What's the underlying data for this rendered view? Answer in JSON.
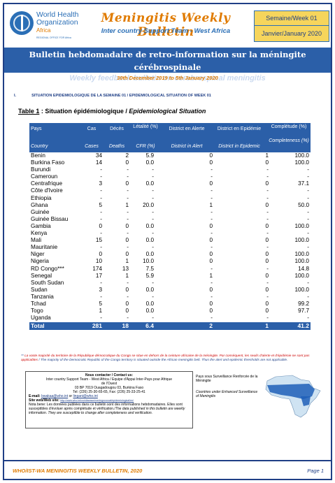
{
  "header": {
    "who_name_line1": "World Health",
    "who_name_line2": "Organization",
    "who_region": "Africa",
    "who_tagline": "REGIONAL OFFICE FOR Africa",
    "title": "Meningitis Weekly Bulletin",
    "subtitle": "Inter country Support Team - West Africa",
    "week_label": "Semaine/Week 01",
    "month_label": "Janvier/January 2020"
  },
  "banner": {
    "title_fr": "Bulletin hebdomadaire de retro-information sur la méningite cérébrospinale",
    "title_en": "Weekly feedback bulletin on cerebrospinal meningitis"
  },
  "date_range": "30th December 2019 to 5th January 2020",
  "section": {
    "number": "I.",
    "title": "SITUATION EPIDEMIOLOGIQUE DE LA SEMAINE 01 / EPIDEMIOLOGICAL SITUATION OF WEEK 01"
  },
  "table_title": {
    "label": "Table 1",
    "fr": "Situation épidémiologique",
    "en": "Epidemiological Situation"
  },
  "table": {
    "headers_fr": [
      "Pays",
      "Cas",
      "Décès",
      "Létalité (%)",
      "District en Alerte",
      "District en Epidémie",
      "Complétude (%)"
    ],
    "headers_en": [
      "Country",
      "Cases",
      "Deaths",
      "CFR (%)",
      "District in Alert",
      "District in Epidemic",
      "Completeness (%)"
    ],
    "rows": [
      {
        "country": "Benin",
        "cases": "34",
        "deaths": "2",
        "cfr": "5.9",
        "alert": "0",
        "epidemic": "1",
        "completeness": "100.0"
      },
      {
        "country": "Burkina Faso",
        "cases": "14",
        "deaths": "0",
        "cfr": "0.0",
        "alert": "0",
        "epidemic": "0",
        "completeness": "100.0"
      },
      {
        "country": "Burundi",
        "cases": "-",
        "deaths": "-",
        "cfr": "-",
        "alert": "-",
        "epidemic": "-",
        "completeness": "-"
      },
      {
        "country": "Cameroun",
        "cases": "-",
        "deaths": "-",
        "cfr": "-",
        "alert": "-",
        "epidemic": "-",
        "completeness": "-"
      },
      {
        "country": "Centrafrique",
        "cases": "3",
        "deaths": "0",
        "cfr": "0.0",
        "alert": "0",
        "epidemic": "0",
        "completeness": "37.1"
      },
      {
        "country": "Côte d'Ivoire",
        "cases": "-",
        "deaths": "-",
        "cfr": "-",
        "alert": "-",
        "epidemic": "-",
        "completeness": "-"
      },
      {
        "country": "Ethiopia",
        "cases": "-",
        "deaths": "-",
        "cfr": "-",
        "alert": "-",
        "epidemic": "-",
        "completeness": "-"
      },
      {
        "country": "Ghana",
        "cases": "5",
        "deaths": "1",
        "cfr": "20.0",
        "alert": "1",
        "epidemic": "0",
        "completeness": "50.0"
      },
      {
        "country": "Guinée",
        "cases": "-",
        "deaths": "-",
        "cfr": "-",
        "alert": "-",
        "epidemic": "-",
        "completeness": "-"
      },
      {
        "country": "Guinée Bissau",
        "cases": "-",
        "deaths": "-",
        "cfr": "-",
        "alert": "-",
        "epidemic": "-",
        "completeness": "-"
      },
      {
        "country": "Gambia",
        "cases": "0",
        "deaths": "0",
        "cfr": "0.0",
        "alert": "0",
        "epidemic": "0",
        "completeness": "100.0"
      },
      {
        "country": "Kenya",
        "cases": "-",
        "deaths": "-",
        "cfr": "-",
        "alert": "-",
        "epidemic": "-",
        "completeness": "-"
      },
      {
        "country": "Mali",
        "cases": "15",
        "deaths": "0",
        "cfr": "0.0",
        "alert": "0",
        "epidemic": "0",
        "completeness": "100.0"
      },
      {
        "country": "Mauritanie",
        "cases": "-",
        "deaths": "-",
        "cfr": "-",
        "alert": "-",
        "epidemic": "-",
        "completeness": "-"
      },
      {
        "country": "Niger",
        "cases": "0",
        "deaths": "0",
        "cfr": "0.0",
        "alert": "0",
        "epidemic": "0",
        "completeness": "100.0"
      },
      {
        "country": "Nigeria",
        "cases": "10",
        "deaths": "1",
        "cfr": "10.0",
        "alert": "0",
        "epidemic": "0",
        "completeness": "100.0"
      },
      {
        "country": "RD Congo***",
        "cases": "174",
        "deaths": "13",
        "cfr": "7.5",
        "alert": "-",
        "epidemic": "-",
        "completeness": "14.8"
      },
      {
        "country": "Senegal",
        "cases": "17",
        "deaths": "1",
        "cfr": "5.9",
        "alert": "1",
        "epidemic": "0",
        "completeness": "100.0"
      },
      {
        "country": "South Sudan",
        "cases": "-",
        "deaths": "-",
        "cfr": "-",
        "alert": "-",
        "epidemic": "-",
        "completeness": "-"
      },
      {
        "country": "Sudan",
        "cases": "3",
        "deaths": "0",
        "cfr": "0.0",
        "alert": "0",
        "epidemic": "0",
        "completeness": "100.0"
      },
      {
        "country": "Tanzania",
        "cases": "-",
        "deaths": "-",
        "cfr": "-",
        "alert": "-",
        "epidemic": "-",
        "completeness": "-"
      },
      {
        "country": "Tchad",
        "cases": "5",
        "deaths": "0",
        "cfr": "0.0",
        "alert": "0",
        "epidemic": "0",
        "completeness": "99.2"
      },
      {
        "country": "Togo",
        "cases": "1",
        "deaths": "0",
        "cfr": "0.0",
        "alert": "0",
        "epidemic": "0",
        "completeness": "97.7"
      },
      {
        "country": "Uganda",
        "cases": "-",
        "deaths": "-",
        "cfr": "-",
        "alert": "-",
        "epidemic": "-",
        "completeness": "-"
      }
    ],
    "total": {
      "country": "Total",
      "cases": "281",
      "deaths": "18",
      "cfr": "6.4",
      "alert": "2",
      "epidemic": "1",
      "completeness": "41.2"
    }
  },
  "footnote": {
    "marker": "**",
    "fr": "La vaste majorité du territoire de la République démocratique du Congo se situe en dehors de la ceinture africaine de la méningite. Par conséquent, les seuils d'alerte et d'épidémie ne sont pas applicables",
    "en": "/ The majority of the Democratic Republic of the Congo territory is situated outside the African meningitis belt. Thus the alert and epidemic thresholds are not applicable."
  },
  "contact": {
    "heading": "Nous contacter / Contact us:",
    "org_line1": "Inter country Support Team - West Africa / Equipe d'Appui Inter-Pays pour Afrique",
    "org_line2": "de l'Ouest",
    "address": "03 BP 7019 Ouagadougou 03, Burkina Faso",
    "phone": "Tel: (226) 25-30-65-65, Fax: (226) 25-33-25-41",
    "email_label": "E-mail:",
    "email1": "bwakaa@who.int",
    "email_or": "or",
    "email2": "lingani@who.int",
    "site_label": "Site web/Web site:",
    "site_url": "http://www.who.int/csr/disease/meningococcal/epidemiological/en/",
    "note": "Nota bene: Les données publiées dans ce bulletin sont des informations hebdomadaires. Elles sont susceptibles d'évoluer après complétude et vérification.",
    "note_en": "/The data published in this bulletin are weekly information. They are susceptible to change after completeness and verification."
  },
  "legend": {
    "fr": "Pays sous Surveillance Renforcée de la Méningite",
    "en": "Countries under Enhanced Surveillance of Meningitis"
  },
  "colors": {
    "navy": "#1f3f86",
    "blue": "#2b5fa8",
    "orange": "#e07b00",
    "yellow": "#f6d55c"
  },
  "footer": {
    "left": "WHO/IST-WA MENINGITIS WEEKLY BULLETIN, 2020",
    "right": "Page 1"
  }
}
